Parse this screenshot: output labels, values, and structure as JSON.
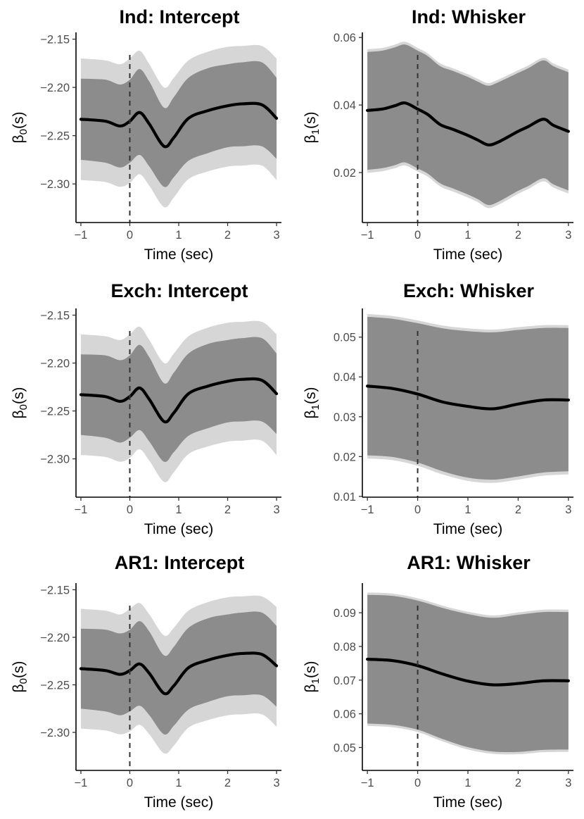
{
  "colors": {
    "outer_band": "#d6d6d6",
    "inner_band": "#8c8c8c",
    "mean_line": "#000000",
    "ref_line": "#333333"
  },
  "chart_data": [
    {
      "id": "ind-intercept",
      "type": "line",
      "title": "Ind: Intercept",
      "xlabel": "Time (sec)",
      "ylabel_base": "β",
      "ylabel_sub": "0",
      "ylabel_suffix": "(s)",
      "xlim": [
        -1.1,
        3.1
      ],
      "ylim": [
        -2.34,
        -2.143
      ],
      "xticks": [
        -1,
        0,
        1,
        2,
        3
      ],
      "xtick_labels": [
        "−1",
        "0",
        "1",
        "2",
        "3"
      ],
      "yticks": [
        -2.15,
        -2.2,
        -2.25,
        -2.3
      ],
      "ytick_labels": [
        "−2.15",
        "−2.20",
        "−2.25",
        "−2.30"
      ],
      "vline": 0,
      "x": [
        -1,
        -0.5,
        -0.2,
        0,
        0.2,
        0.4,
        0.7,
        0.9,
        1.2,
        1.6,
        2,
        2.3,
        2.7,
        3
      ],
      "mean": [
        -2.233,
        -2.235,
        -2.24,
        -2.235,
        -2.226,
        -2.238,
        -2.261,
        -2.252,
        -2.232,
        -2.224,
        -2.219,
        -2.217,
        -2.218,
        -2.232
      ],
      "inner_upper": [
        -2.191,
        -2.192,
        -2.197,
        -2.192,
        -2.181,
        -2.194,
        -2.221,
        -2.21,
        -2.19,
        -2.18,
        -2.176,
        -2.174,
        -2.174,
        -2.19
      ],
      "inner_lower": [
        -2.275,
        -2.278,
        -2.283,
        -2.278,
        -2.27,
        -2.282,
        -2.303,
        -2.293,
        -2.276,
        -2.268,
        -2.262,
        -2.261,
        -2.261,
        -2.274
      ],
      "outer_upper": [
        -2.17,
        -2.172,
        -2.176,
        -2.17,
        -2.162,
        -2.176,
        -2.2,
        -2.19,
        -2.172,
        -2.163,
        -2.158,
        -2.157,
        -2.157,
        -2.17
      ],
      "outer_lower": [
        -2.296,
        -2.298,
        -2.303,
        -2.299,
        -2.29,
        -2.302,
        -2.324,
        -2.314,
        -2.295,
        -2.287,
        -2.282,
        -2.281,
        -2.281,
        -2.296
      ]
    },
    {
      "id": "ind-whisker",
      "type": "line",
      "title": "Ind: Whisker",
      "xlabel": "Time (sec)",
      "ylabel_base": "β",
      "ylabel_sub": "1",
      "ylabel_suffix": "(s)",
      "xlim": [
        -1.1,
        3.1
      ],
      "ylim": [
        0.0052,
        0.0615
      ],
      "xticks": [
        -1,
        0,
        1,
        2,
        3
      ],
      "xtick_labels": [
        "−1",
        "0",
        "1",
        "2",
        "3"
      ],
      "yticks": [
        0.02,
        0.04,
        0.06
      ],
      "ytick_labels": [
        "0.02",
        "0.04",
        "0.06"
      ],
      "vline": 0,
      "x": [
        -1,
        -0.7,
        -0.45,
        -0.25,
        0,
        0.2,
        0.45,
        0.7,
        1,
        1.2,
        1.4,
        1.6,
        2,
        2.2,
        2.5,
        2.7,
        3
      ],
      "mean": [
        0.0384,
        0.0388,
        0.0398,
        0.0406,
        0.0388,
        0.0372,
        0.0342,
        0.0328,
        0.031,
        0.0296,
        0.0282,
        0.029,
        0.0322,
        0.0336,
        0.0358,
        0.034,
        0.0322
      ],
      "inner_upper": [
        0.0557,
        0.0561,
        0.0571,
        0.0579,
        0.0561,
        0.0545,
        0.0515,
        0.0501,
        0.0483,
        0.0469,
        0.0457,
        0.0467,
        0.0495,
        0.0509,
        0.0532,
        0.0515,
        0.0497
      ],
      "inner_lower": [
        0.0208,
        0.0213,
        0.0222,
        0.023,
        0.0212,
        0.0197,
        0.0168,
        0.0153,
        0.0135,
        0.0121,
        0.0104,
        0.0113,
        0.0146,
        0.016,
        0.0183,
        0.0165,
        0.0147
      ],
      "outer_upper": [
        0.0565,
        0.0569,
        0.0579,
        0.0587,
        0.0569,
        0.0553,
        0.0523,
        0.0509,
        0.0491,
        0.0477,
        0.0465,
        0.0475,
        0.0503,
        0.0517,
        0.054,
        0.0523,
        0.0505
      ],
      "outer_lower": [
        0.0199,
        0.0204,
        0.0213,
        0.0221,
        0.0203,
        0.0188,
        0.0159,
        0.0144,
        0.0126,
        0.0112,
        0.0095,
        0.0104,
        0.0137,
        0.0151,
        0.0174,
        0.0156,
        0.0138
      ]
    },
    {
      "id": "exch-intercept",
      "type": "line",
      "title": "Exch: Intercept",
      "xlabel": "Time (sec)",
      "ylabel_base": "β",
      "ylabel_sub": "0",
      "ylabel_suffix": "(s)",
      "xlim": [
        -1.1,
        3.1
      ],
      "ylim": [
        -2.34,
        -2.143
      ],
      "xticks": [
        -1,
        0,
        1,
        2,
        3
      ],
      "xtick_labels": [
        "−1",
        "0",
        "1",
        "2",
        "3"
      ],
      "yticks": [
        -2.15,
        -2.2,
        -2.25,
        -2.3
      ],
      "ytick_labels": [
        "−2.15",
        "−2.20",
        "−2.25",
        "−2.30"
      ],
      "vline": 0,
      "x": [
        -1,
        -0.5,
        -0.2,
        0,
        0.2,
        0.4,
        0.7,
        0.9,
        1.2,
        1.6,
        2,
        2.3,
        2.7,
        3
      ],
      "mean": [
        -2.233,
        -2.235,
        -2.24,
        -2.235,
        -2.226,
        -2.238,
        -2.261,
        -2.252,
        -2.232,
        -2.224,
        -2.219,
        -2.217,
        -2.218,
        -2.232
      ],
      "inner_upper": [
        -2.191,
        -2.192,
        -2.197,
        -2.192,
        -2.181,
        -2.194,
        -2.221,
        -2.21,
        -2.19,
        -2.18,
        -2.176,
        -2.174,
        -2.174,
        -2.19
      ],
      "inner_lower": [
        -2.275,
        -2.278,
        -2.283,
        -2.278,
        -2.27,
        -2.282,
        -2.303,
        -2.293,
        -2.276,
        -2.268,
        -2.262,
        -2.261,
        -2.261,
        -2.274
      ],
      "outer_upper": [
        -2.17,
        -2.172,
        -2.176,
        -2.17,
        -2.162,
        -2.176,
        -2.2,
        -2.19,
        -2.172,
        -2.163,
        -2.158,
        -2.157,
        -2.157,
        -2.17
      ],
      "outer_lower": [
        -2.296,
        -2.298,
        -2.303,
        -2.299,
        -2.29,
        -2.302,
        -2.324,
        -2.314,
        -2.295,
        -2.287,
        -2.282,
        -2.281,
        -2.281,
        -2.296
      ]
    },
    {
      "id": "exch-whisker",
      "type": "line",
      "title": "Exch: Whisker",
      "xlabel": "Time (sec)",
      "ylabel_base": "β",
      "ylabel_sub": "1",
      "ylabel_suffix": "(s)",
      "xlim": [
        -1.1,
        3.1
      ],
      "ylim": [
        0.0098,
        0.0572
      ],
      "xticks": [
        -1,
        0,
        1,
        2,
        3
      ],
      "xtick_labels": [
        "−1",
        "0",
        "1",
        "2",
        "3"
      ],
      "yticks": [
        0.01,
        0.02,
        0.03,
        0.04,
        0.05
      ],
      "ytick_labels": [
        "0.01",
        "0.02",
        "0.03",
        "0.04",
        "0.05"
      ],
      "vline": 0,
      "x": [
        -1,
        -0.5,
        0,
        0.5,
        1,
        1.5,
        2,
        2.5,
        3
      ],
      "mean": [
        0.0377,
        0.0371,
        0.0357,
        0.0337,
        0.0326,
        0.032,
        0.0332,
        0.0342,
        0.0342
      ],
      "inner_upper": [
        0.0551,
        0.0546,
        0.0535,
        0.0522,
        0.0515,
        0.0512,
        0.0518,
        0.0523,
        0.0523
      ],
      "inner_lower": [
        0.0203,
        0.0199,
        0.0185,
        0.0163,
        0.0147,
        0.0142,
        0.015,
        0.016,
        0.0163
      ],
      "outer_upper": [
        0.0558,
        0.0553,
        0.0542,
        0.0529,
        0.0522,
        0.0519,
        0.0525,
        0.053,
        0.053
      ],
      "outer_lower": [
        0.0195,
        0.0191,
        0.0177,
        0.0155,
        0.0139,
        0.0134,
        0.0142,
        0.0152,
        0.0155
      ]
    },
    {
      "id": "ar1-intercept",
      "type": "line",
      "title": "AR1: Intercept",
      "xlabel": "Time (sec)",
      "ylabel_base": "β",
      "ylabel_sub": "0",
      "ylabel_suffix": "(s)",
      "xlim": [
        -1.1,
        3.1
      ],
      "ylim": [
        -2.34,
        -2.143
      ],
      "xticks": [
        -1,
        0,
        1,
        2,
        3
      ],
      "xtick_labels": [
        "−1",
        "0",
        "1",
        "2",
        "3"
      ],
      "yticks": [
        -2.15,
        -2.2,
        -2.25,
        -2.3
      ],
      "ytick_labels": [
        "−2.15",
        "−2.20",
        "−2.25",
        "−2.30"
      ],
      "vline": 0,
      "x": [
        -1,
        -0.5,
        -0.2,
        0,
        0.2,
        0.4,
        0.7,
        0.9,
        1.2,
        1.6,
        2,
        2.3,
        2.7,
        3
      ],
      "mean": [
        -2.233,
        -2.235,
        -2.239,
        -2.235,
        -2.228,
        -2.238,
        -2.259,
        -2.251,
        -2.232,
        -2.224,
        -2.219,
        -2.217,
        -2.218,
        -2.23
      ],
      "inner_upper": [
        -2.191,
        -2.192,
        -2.196,
        -2.192,
        -2.183,
        -2.194,
        -2.219,
        -2.21,
        -2.19,
        -2.18,
        -2.176,
        -2.174,
        -2.174,
        -2.188
      ],
      "inner_lower": [
        -2.275,
        -2.278,
        -2.282,
        -2.278,
        -2.272,
        -2.282,
        -2.302,
        -2.293,
        -2.276,
        -2.268,
        -2.262,
        -2.261,
        -2.261,
        -2.273
      ],
      "outer_upper": [
        -2.17,
        -2.172,
        -2.176,
        -2.17,
        -2.164,
        -2.176,
        -2.198,
        -2.19,
        -2.172,
        -2.163,
        -2.158,
        -2.157,
        -2.157,
        -2.168
      ],
      "outer_lower": [
        -2.296,
        -2.298,
        -2.302,
        -2.299,
        -2.292,
        -2.302,
        -2.322,
        -2.314,
        -2.295,
        -2.287,
        -2.282,
        -2.281,
        -2.281,
        -2.294
      ]
    },
    {
      "id": "ar1-whisker",
      "type": "line",
      "title": "AR1: Whisker",
      "xlabel": "Time (sec)",
      "ylabel_base": "β",
      "ylabel_sub": "1",
      "ylabel_suffix": "(s)",
      "xlim": [
        -1.1,
        3.1
      ],
      "ylim": [
        0.0432,
        0.0988
      ],
      "xticks": [
        -1,
        0,
        1,
        2,
        3
      ],
      "xtick_labels": [
        "−1",
        "0",
        "1",
        "2",
        "3"
      ],
      "yticks": [
        0.05,
        0.06,
        0.07,
        0.08,
        0.09
      ],
      "ytick_labels": [
        "0.05",
        "0.06",
        "0.07",
        "0.08",
        "0.09"
      ],
      "vline": 0,
      "x": [
        -1,
        -0.5,
        0,
        0.5,
        1,
        1.5,
        2,
        2.5,
        3
      ],
      "mean": [
        0.0762,
        0.0758,
        0.0743,
        0.0718,
        0.0697,
        0.0686,
        0.069,
        0.0698,
        0.0698
      ],
      "inner_upper": [
        0.0953,
        0.095,
        0.0936,
        0.0914,
        0.0896,
        0.0885,
        0.0894,
        0.0902,
        0.0902
      ],
      "inner_lower": [
        0.0571,
        0.0567,
        0.0553,
        0.0525,
        0.0501,
        0.0488,
        0.0487,
        0.0493,
        0.0494
      ],
      "outer_upper": [
        0.096,
        0.0957,
        0.0943,
        0.0921,
        0.0903,
        0.0892,
        0.0901,
        0.0909,
        0.0909
      ],
      "outer_lower": [
        0.0564,
        0.056,
        0.0546,
        0.0518,
        0.0494,
        0.0481,
        0.048,
        0.0486,
        0.0487
      ]
    }
  ]
}
